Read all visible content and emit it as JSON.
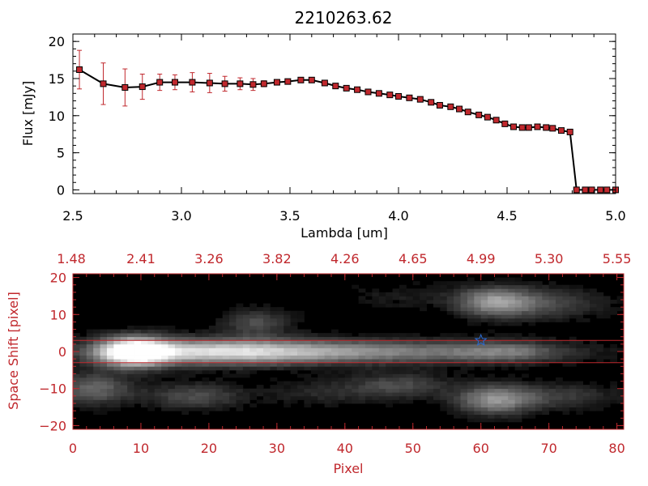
{
  "chart_data": [
    {
      "type": "line",
      "title": "2210263.62",
      "xlabel": "Lambda [um]",
      "ylabel": "Flux [mJy]",
      "xlim": [
        2.5,
        5.0
      ],
      "ylim": [
        -0.5,
        21
      ],
      "xticks": [
        2.5,
        3.0,
        3.5,
        4.0,
        4.5,
        5.0
      ],
      "xtick_labels": [
        "2.5",
        "3.0",
        "3.5",
        "4.0",
        "4.5",
        "5.0"
      ],
      "yticks": [
        0,
        5,
        10,
        15,
        20
      ],
      "ytick_labels": [
        "0",
        "5",
        "10",
        "15",
        "20"
      ],
      "line_color": "#000000",
      "marker_color": "#c0282d",
      "errorbar_color": "#c0282d",
      "series": [
        {
          "x": [
            2.53,
            2.64,
            2.74,
            2.82,
            2.9,
            2.97,
            3.05,
            3.13,
            3.2,
            3.27,
            3.33,
            3.38,
            3.44,
            3.49,
            3.55,
            3.6,
            3.66,
            3.71,
            3.76,
            3.81,
            3.86,
            3.91,
            3.96,
            4.0,
            4.05,
            4.1,
            4.15,
            4.19,
            4.24,
            4.28,
            4.32,
            4.37,
            4.41,
            4.45,
            4.49,
            4.53,
            4.57,
            4.6,
            4.64,
            4.68,
            4.71,
            4.75,
            4.79,
            4.82,
            4.86,
            4.89,
            4.93,
            4.96,
            5.0
          ],
          "y": [
            16.2,
            14.3,
            13.8,
            13.9,
            14.5,
            14.5,
            14.5,
            14.4,
            14.3,
            14.3,
            14.2,
            14.3,
            14.5,
            14.6,
            14.8,
            14.8,
            14.4,
            14.0,
            13.7,
            13.5,
            13.2,
            13.0,
            12.8,
            12.6,
            12.4,
            12.2,
            11.8,
            11.4,
            11.2,
            10.9,
            10.5,
            10.1,
            9.8,
            9.4,
            8.9,
            8.5,
            8.4,
            8.4,
            8.5,
            8.4,
            8.3,
            8.0,
            7.8,
            0.0,
            0.0,
            0.0,
            0.0,
            0.0,
            0.0
          ],
          "yerr": [
            2.6,
            2.8,
            2.5,
            1.7,
            1.1,
            1.0,
            1.3,
            1.3,
            1.0,
            0.8,
            0.8,
            0.4,
            0.3,
            0.3,
            0.3,
            0.3,
            0.3,
            0.3,
            0.2,
            0.2,
            0.2,
            0.2,
            0.2,
            0.2,
            0.2,
            0.2,
            0.2,
            0.2,
            0.2,
            0.2,
            0.2,
            0.2,
            0.2,
            0.2,
            0.2,
            0.2,
            0.2,
            0.2,
            0.2,
            0.2,
            0.2,
            0.2,
            0.2,
            0.0,
            0.0,
            0.0,
            0.0,
            0.0,
            0.0
          ]
        }
      ]
    },
    {
      "type": "heatmap",
      "xlabel": "Pixel",
      "ylabel": "Space Shift [pixel]",
      "xlim": [
        0,
        81
      ],
      "ylim": [
        -21,
        21
      ],
      "xticks": [
        0,
        10,
        20,
        30,
        40,
        50,
        60,
        70,
        80
      ],
      "xtick_labels": [
        "0",
        "10",
        "20",
        "30",
        "40",
        "50",
        "60",
        "70",
        "80"
      ],
      "yticks": [
        -20,
        -10,
        0,
        10,
        20
      ],
      "ytick_labels": [
        "−20",
        "−10",
        "0",
        "10",
        "20"
      ],
      "top_axis_ticks": [
        0,
        10,
        20,
        30,
        40,
        50,
        60,
        70,
        80
      ],
      "top_axis_labels": [
        "1.48",
        "2.41",
        "3.26",
        "3.82",
        "4.26",
        "4.65",
        "4.99",
        "5.30",
        "5.55"
      ],
      "extraction_lines_y": [
        3,
        -3
      ],
      "star_marker": {
        "x": 60,
        "y": 3
      },
      "axis_color": "#c0282d",
      "line_color": "#c0282d",
      "star_color": "#2a6bd6",
      "blobs": [
        {
          "x": 9,
          "y": 0,
          "sx": 3.5,
          "sy": 2.8,
          "a": 1.0
        },
        {
          "x": 20,
          "y": 0,
          "sx": 12,
          "sy": 2.5,
          "a": 0.7
        },
        {
          "x": 45,
          "y": 0,
          "sx": 18,
          "sy": 2.2,
          "a": 0.48
        },
        {
          "x": 64,
          "y": 0,
          "sx": 5,
          "sy": 2.0,
          "a": 0.25
        },
        {
          "x": 62,
          "y": 13.5,
          "sx": 4,
          "sy": 2.8,
          "a": 0.55
        },
        {
          "x": 70,
          "y": 13,
          "sx": 6,
          "sy": 3,
          "a": 0.25
        },
        {
          "x": 62,
          "y": -13,
          "sx": 4,
          "sy": 2.8,
          "a": 0.55
        },
        {
          "x": 72,
          "y": -12,
          "sx": 6,
          "sy": 2.5,
          "a": 0.22
        },
        {
          "x": 3,
          "y": -10,
          "sx": 4,
          "sy": 3,
          "a": 0.4
        },
        {
          "x": 18,
          "y": -12,
          "sx": 5,
          "sy": 2.5,
          "a": 0.3
        },
        {
          "x": 27,
          "y": 8,
          "sx": 3.5,
          "sy": 2.5,
          "a": 0.3
        },
        {
          "x": 48,
          "y": -9,
          "sx": 5,
          "sy": 2.5,
          "a": 0.28
        },
        {
          "x": 37,
          "y": -11,
          "sx": 6,
          "sy": 2.5,
          "a": 0.15
        },
        {
          "x": 48,
          "y": 15,
          "sx": 6,
          "sy": 2.5,
          "a": 0.1
        }
      ]
    }
  ]
}
